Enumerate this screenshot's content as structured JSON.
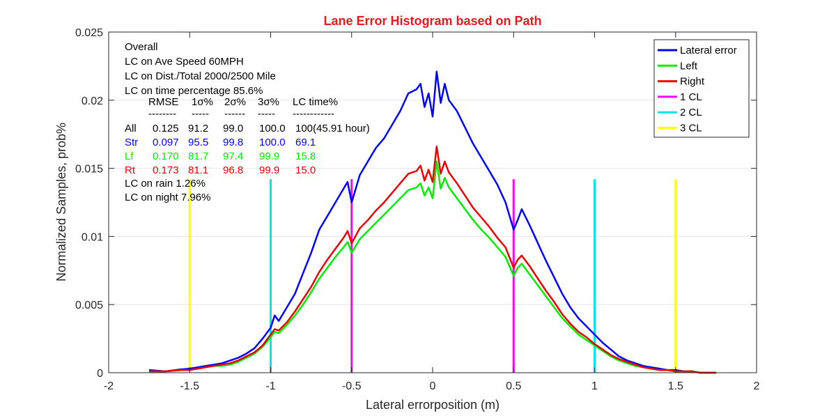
{
  "chart_data": {
    "type": "line",
    "title": "Lane Error Histogram based on Path",
    "title_color": "#e41a1c",
    "xlabel": "Lateral errorposition (m)",
    "ylabel": "Normalized Samples, prob%",
    "xlim": [
      -2,
      2
    ],
    "ylim": [
      0,
      0.025
    ],
    "xticks": [
      -2,
      -1.5,
      -1,
      -0.5,
      0,
      0.5,
      1,
      1.5,
      2
    ],
    "xtick_labels": [
      "-2",
      "-1.5",
      "-1",
      "-0.5",
      "0",
      "0.5",
      "1",
      "1.5",
      "2"
    ],
    "yticks": [
      0,
      0.005,
      0.01,
      0.015,
      0.02,
      0.025
    ],
    "ytick_labels": [
      "0",
      "0.005",
      "0.01",
      "0.015",
      "0.02",
      "0.025"
    ],
    "grid": "horizontal",
    "legend_position": "top-right",
    "series": [
      {
        "name": "Lateral error",
        "color": "#0000ff",
        "x": [
          -1.75,
          -1.65,
          -1.55,
          -1.5,
          -1.45,
          -1.4,
          -1.35,
          -1.3,
          -1.25,
          -1.2,
          -1.15,
          -1.1,
          -1.05,
          -1.0,
          -0.975,
          -0.95,
          -0.9,
          -0.85,
          -0.8,
          -0.75,
          -0.7,
          -0.65,
          -0.6,
          -0.55,
          -0.525,
          -0.5,
          -0.45,
          -0.4,
          -0.35,
          -0.3,
          -0.25,
          -0.2,
          -0.15,
          -0.1,
          -0.075,
          -0.05,
          -0.025,
          0.0,
          0.025,
          0.05,
          0.075,
          0.1,
          0.15,
          0.2,
          0.25,
          0.3,
          0.35,
          0.4,
          0.45,
          0.5,
          0.525,
          0.55,
          0.6,
          0.65,
          0.7,
          0.75,
          0.8,
          0.85,
          0.9,
          0.95,
          1.0,
          1.05,
          1.1,
          1.15,
          1.2,
          1.25,
          1.3,
          1.35,
          1.4,
          1.45,
          1.5,
          1.55,
          1.6,
          1.65,
          1.75
        ],
        "y": [
          0.0002,
          0.0001,
          0.00025,
          0.0003,
          0.0004,
          0.0005,
          0.0006,
          0.0007,
          0.0009,
          0.0011,
          0.0014,
          0.0018,
          0.0025,
          0.0033,
          0.0042,
          0.0038,
          0.0048,
          0.0058,
          0.0073,
          0.0088,
          0.0105,
          0.0115,
          0.0125,
          0.0135,
          0.014,
          0.0125,
          0.0145,
          0.0155,
          0.0165,
          0.0172,
          0.0182,
          0.0192,
          0.0205,
          0.0208,
          0.0212,
          0.0195,
          0.0205,
          0.0188,
          0.0221,
          0.0198,
          0.0212,
          0.02,
          0.0192,
          0.018,
          0.0168,
          0.0158,
          0.0148,
          0.0138,
          0.0125,
          0.0105,
          0.0112,
          0.012,
          0.0108,
          0.0095,
          0.0082,
          0.007,
          0.0058,
          0.0048,
          0.004,
          0.0034,
          0.0028,
          0.0022,
          0.0017,
          0.0012,
          0.0009,
          0.0007,
          0.0005,
          0.0004,
          0.0003,
          0.0002,
          0.0002,
          0.0001,
          0.0001,
          0.0,
          0.0
        ]
      },
      {
        "name": "Left",
        "color": "#00ee00",
        "x": [
          -1.75,
          -1.65,
          -1.55,
          -1.5,
          -1.45,
          -1.4,
          -1.35,
          -1.3,
          -1.25,
          -1.2,
          -1.15,
          -1.1,
          -1.05,
          -1.0,
          -0.975,
          -0.95,
          -0.9,
          -0.85,
          -0.8,
          -0.75,
          -0.7,
          -0.65,
          -0.6,
          -0.55,
          -0.525,
          -0.5,
          -0.45,
          -0.4,
          -0.35,
          -0.3,
          -0.25,
          -0.2,
          -0.15,
          -0.1,
          -0.075,
          -0.05,
          -0.025,
          0.0,
          0.025,
          0.05,
          0.075,
          0.1,
          0.15,
          0.2,
          0.25,
          0.3,
          0.35,
          0.4,
          0.45,
          0.5,
          0.525,
          0.55,
          0.6,
          0.65,
          0.7,
          0.75,
          0.8,
          0.85,
          0.9,
          0.95,
          1.0,
          1.05,
          1.1,
          1.15,
          1.2,
          1.25,
          1.3,
          1.35,
          1.4,
          1.45,
          1.5,
          1.55,
          1.6,
          1.65,
          1.75
        ],
        "y": [
          0.0001,
          0.0001,
          0.0002,
          0.0002,
          0.0003,
          0.0004,
          0.0005,
          0.0005,
          0.0006,
          0.0008,
          0.0011,
          0.0014,
          0.0019,
          0.0026,
          0.003,
          0.0029,
          0.0035,
          0.0042,
          0.005,
          0.0059,
          0.0069,
          0.0077,
          0.0085,
          0.0092,
          0.0096,
          0.0088,
          0.0098,
          0.0104,
          0.011,
          0.0116,
          0.0122,
          0.0128,
          0.0134,
          0.0136,
          0.0139,
          0.013,
          0.0136,
          0.0128,
          0.0155,
          0.0135,
          0.0143,
          0.0136,
          0.0128,
          0.012,
          0.0112,
          0.0105,
          0.0099,
          0.0092,
          0.0085,
          0.0071,
          0.0077,
          0.008,
          0.0072,
          0.0064,
          0.0056,
          0.0048,
          0.004,
          0.0034,
          0.0028,
          0.0024,
          0.002,
          0.0016,
          0.0012,
          0.0009,
          0.0007,
          0.0005,
          0.0004,
          0.0003,
          0.0002,
          0.0002,
          0.0001,
          0.0001,
          0.0001,
          0.0,
          0.0
        ]
      },
      {
        "name": "Right",
        "color": "#ee0000",
        "x": [
          -1.75,
          -1.65,
          -1.55,
          -1.5,
          -1.45,
          -1.4,
          -1.35,
          -1.3,
          -1.25,
          -1.2,
          -1.15,
          -1.1,
          -1.05,
          -1.0,
          -0.975,
          -0.95,
          -0.9,
          -0.85,
          -0.8,
          -0.75,
          -0.7,
          -0.65,
          -0.6,
          -0.55,
          -0.525,
          -0.5,
          -0.45,
          -0.4,
          -0.35,
          -0.3,
          -0.25,
          -0.2,
          -0.15,
          -0.1,
          -0.075,
          -0.05,
          -0.025,
          0.0,
          0.025,
          0.05,
          0.075,
          0.1,
          0.15,
          0.2,
          0.25,
          0.3,
          0.35,
          0.4,
          0.45,
          0.5,
          0.525,
          0.55,
          0.6,
          0.65,
          0.7,
          0.75,
          0.8,
          0.85,
          0.9,
          0.95,
          1.0,
          1.05,
          1.1,
          1.15,
          1.2,
          1.25,
          1.3,
          1.35,
          1.4,
          1.45,
          1.5,
          1.55,
          1.6,
          1.65,
          1.75
        ],
        "y": [
          0.0001,
          0.0001,
          0.0002,
          0.0002,
          0.0003,
          0.0004,
          0.0005,
          0.0006,
          0.0007,
          0.0009,
          0.0012,
          0.0015,
          0.002,
          0.0028,
          0.0032,
          0.0031,
          0.0037,
          0.0045,
          0.0054,
          0.0063,
          0.0074,
          0.0083,
          0.0091,
          0.0099,
          0.0104,
          0.0095,
          0.0106,
          0.0112,
          0.0119,
          0.0125,
          0.0132,
          0.0139,
          0.0146,
          0.0148,
          0.0152,
          0.0141,
          0.0149,
          0.014,
          0.0166,
          0.0146,
          0.0155,
          0.0147,
          0.0139,
          0.013,
          0.0121,
          0.0114,
          0.0107,
          0.0099,
          0.0092,
          0.0077,
          0.0083,
          0.0086,
          0.0078,
          0.0069,
          0.006,
          0.0052,
          0.0043,
          0.0036,
          0.003,
          0.0026,
          0.0021,
          0.0017,
          0.0013,
          0.001,
          0.0008,
          0.0006,
          0.0004,
          0.0003,
          0.0002,
          0.0002,
          0.0001,
          0.0001,
          0.0001,
          0.0,
          0.0
        ]
      }
    ],
    "vlines": [
      {
        "name": "1 CL",
        "color": "#ff00ff",
        "x": [
          -0.5,
          0.5
        ],
        "y": [
          0,
          0.0142
        ]
      },
      {
        "name": "2 CL",
        "color": "#00e5ee",
        "x": [
          -1,
          1
        ],
        "y": [
          0,
          0.0142
        ]
      },
      {
        "name": "3 CL",
        "color": "#ffff00",
        "x": [
          -1.5,
          1.5
        ],
        "y": [
          0,
          0.0142
        ]
      }
    ],
    "legend": [
      "Lateral error",
      "Left",
      "Right",
      "1 CL",
      "2 CL",
      "3 CL"
    ],
    "annotations": {
      "overall": "Overall",
      "lc_speed": "LC on Ave Speed 60MPH",
      "lc_dist": "LC on Dist./Total 2000/2500 Mile",
      "lc_time": "LC on time percentage 85.6%",
      "stats_header": [
        "RMSE",
        "1σ%",
        "2σ%",
        "3σ%",
        "LC time%"
      ],
      "stats_dashes": [
        "--------",
        "-----",
        "------",
        "-----",
        "------------"
      ],
      "stats_rows": [
        {
          "label": "All",
          "color": "#000000",
          "values": [
            "0.125",
            "91.2",
            "99.0",
            "100.0",
            "100(45.91 hour)"
          ]
        },
        {
          "label": "Str",
          "color": "#0000ff",
          "values": [
            "0.097",
            "95.5",
            "99.8",
            "100.0",
            "69.1"
          ]
        },
        {
          "label": "Lf",
          "color": "#00ee00",
          "values": [
            "0.170",
            "81.7",
            "97.4",
            "99.9",
            "15.8"
          ]
        },
        {
          "label": "Rt",
          "color": "#ee0000",
          "values": [
            "0.173",
            "81.1",
            "96.8",
            "99.9",
            "15.0"
          ]
        }
      ],
      "lc_rain": "LC on rain  1.26%",
      "lc_night": "LC on night 7.96%"
    }
  }
}
